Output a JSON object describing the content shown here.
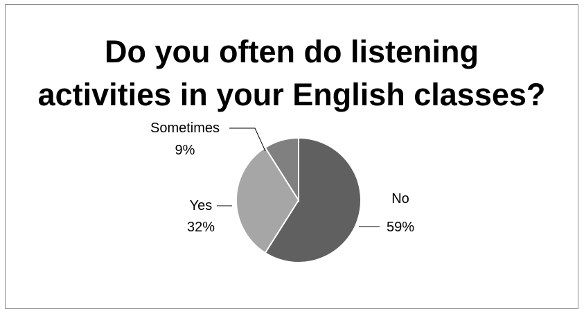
{
  "chart_data": {
    "type": "pie",
    "title_line1": "Do you often do listening",
    "title_line2": "activities in your English classes?",
    "legend": "none",
    "slices": [
      {
        "label": "No",
        "value": 59,
        "value_text": "59%",
        "color": "#606060"
      },
      {
        "label": "Yes",
        "value": 32,
        "value_text": "32%",
        "color": "#a6a6a6"
      },
      {
        "label": "Sometimes",
        "value": 9,
        "value_text": "9%",
        "color": "#808080"
      }
    ]
  }
}
